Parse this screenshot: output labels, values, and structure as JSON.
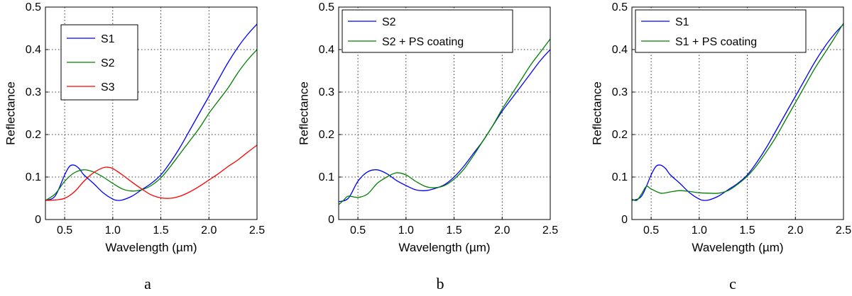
{
  "chart_data": [
    {
      "type": "line",
      "panel_label": "a",
      "xlabel": "Wavelength (µm)",
      "ylabel": "Reflectance",
      "xlim": [
        0.3,
        2.5
      ],
      "ylim": [
        0,
        0.5
      ],
      "xticks": [
        "0.5",
        "1.0",
        "1.5",
        "2.0",
        "2.5"
      ],
      "yticks": [
        "0",
        "0.1",
        "0.2",
        "0.3",
        "0.4",
        "0.5"
      ],
      "grid": true,
      "legend_position": "top-left",
      "series": [
        {
          "name": "S1",
          "color": "#0000ff",
          "x": [
            0.3,
            0.4,
            0.5,
            0.55,
            0.6,
            0.65,
            0.7,
            0.8,
            0.9,
            1.0,
            1.05,
            1.1,
            1.2,
            1.3,
            1.4,
            1.5,
            1.6,
            1.7,
            1.8,
            1.9,
            2.0,
            2.1,
            2.2,
            2.3,
            2.4,
            2.5
          ],
          "y": [
            0.045,
            0.055,
            0.105,
            0.125,
            0.128,
            0.12,
            0.105,
            0.085,
            0.063,
            0.048,
            0.045,
            0.046,
            0.055,
            0.07,
            0.085,
            0.105,
            0.135,
            0.17,
            0.21,
            0.25,
            0.29,
            0.33,
            0.37,
            0.405,
            0.435,
            0.46
          ]
        },
        {
          "name": "S2",
          "color": "#008000",
          "x": [
            0.3,
            0.4,
            0.5,
            0.6,
            0.7,
            0.8,
            0.9,
            1.0,
            1.1,
            1.2,
            1.3,
            1.4,
            1.5,
            1.6,
            1.7,
            1.8,
            1.9,
            2.0,
            2.1,
            2.2,
            2.3,
            2.4,
            2.5
          ],
          "y": [
            0.045,
            0.06,
            0.09,
            0.11,
            0.117,
            0.112,
            0.1,
            0.085,
            0.072,
            0.067,
            0.07,
            0.08,
            0.098,
            0.125,
            0.155,
            0.185,
            0.215,
            0.25,
            0.28,
            0.31,
            0.345,
            0.375,
            0.4
          ]
        },
        {
          "name": "S3",
          "color": "#ff0000",
          "x": [
            0.3,
            0.4,
            0.5,
            0.6,
            0.7,
            0.8,
            0.9,
            0.95,
            1.0,
            1.1,
            1.2,
            1.3,
            1.4,
            1.5,
            1.6,
            1.7,
            1.8,
            1.9,
            2.0,
            2.1,
            2.2,
            2.3,
            2.4,
            2.5
          ],
          "y": [
            0.045,
            0.046,
            0.05,
            0.065,
            0.09,
            0.11,
            0.122,
            0.123,
            0.12,
            0.105,
            0.088,
            0.072,
            0.058,
            0.051,
            0.05,
            0.055,
            0.065,
            0.078,
            0.093,
            0.108,
            0.125,
            0.14,
            0.158,
            0.175
          ]
        }
      ]
    },
    {
      "type": "line",
      "panel_label": "b",
      "xlabel": "Wavelength (µm)",
      "ylabel": "Reflectance",
      "xlim": [
        0.3,
        2.5
      ],
      "ylim": [
        0,
        0.5
      ],
      "xticks": [
        "0.5",
        "1.0",
        "1.5",
        "2.0",
        "2.5"
      ],
      "yticks": [
        "0",
        "0.1",
        "0.2",
        "0.3",
        "0.4",
        "0.5"
      ],
      "grid": true,
      "legend_position": "top-left",
      "series": [
        {
          "name": "S2",
          "color": "#0000ff",
          "x": [
            0.3,
            0.4,
            0.5,
            0.6,
            0.7,
            0.8,
            0.9,
            1.0,
            1.1,
            1.2,
            1.3,
            1.4,
            1.5,
            1.6,
            1.7,
            1.8,
            1.9,
            2.0,
            2.1,
            2.2,
            2.3,
            2.4,
            2.5
          ],
          "y": [
            0.042,
            0.05,
            0.09,
            0.112,
            0.117,
            0.108,
            0.092,
            0.08,
            0.07,
            0.068,
            0.073,
            0.082,
            0.1,
            0.125,
            0.155,
            0.185,
            0.22,
            0.255,
            0.285,
            0.315,
            0.345,
            0.375,
            0.4
          ]
        },
        {
          "name": "S2 + PS coating",
          "color": "#008000",
          "x": [
            0.3,
            0.35,
            0.4,
            0.5,
            0.6,
            0.7,
            0.8,
            0.9,
            1.0,
            1.1,
            1.2,
            1.3,
            1.4,
            1.5,
            1.6,
            1.7,
            1.8,
            1.9,
            2.0,
            2.1,
            2.2,
            2.3,
            2.4,
            2.5
          ],
          "y": [
            0.035,
            0.045,
            0.055,
            0.052,
            0.06,
            0.085,
            0.1,
            0.11,
            0.105,
            0.09,
            0.078,
            0.075,
            0.08,
            0.095,
            0.118,
            0.15,
            0.185,
            0.22,
            0.26,
            0.295,
            0.33,
            0.365,
            0.395,
            0.425
          ]
        }
      ]
    },
    {
      "type": "line",
      "panel_label": "c",
      "xlabel": "Wavelength (µm)",
      "ylabel": "Reflectance",
      "xlim": [
        0.3,
        2.5
      ],
      "ylim": [
        0,
        0.5
      ],
      "xticks": [
        "0.5",
        "1.0",
        "1.5",
        "2.0",
        "2.5"
      ],
      "yticks": [
        "0",
        "0.1",
        "0.2",
        "0.3",
        "0.4",
        "0.5"
      ],
      "grid": true,
      "legend_position": "top-left",
      "series": [
        {
          "name": "S1",
          "color": "#0000ff",
          "x": [
            0.3,
            0.4,
            0.5,
            0.55,
            0.6,
            0.65,
            0.7,
            0.8,
            0.9,
            1.0,
            1.05,
            1.1,
            1.2,
            1.3,
            1.4,
            1.5,
            1.6,
            1.7,
            1.8,
            1.9,
            2.0,
            2.1,
            2.2,
            2.3,
            2.4,
            2.5
          ],
          "y": [
            0.045,
            0.055,
            0.105,
            0.125,
            0.128,
            0.12,
            0.105,
            0.085,
            0.063,
            0.048,
            0.045,
            0.046,
            0.055,
            0.07,
            0.085,
            0.105,
            0.135,
            0.17,
            0.21,
            0.25,
            0.29,
            0.33,
            0.37,
            0.405,
            0.435,
            0.46
          ]
        },
        {
          "name": "S1 + PS coating",
          "color": "#008000",
          "x": [
            0.3,
            0.35,
            0.4,
            0.45,
            0.5,
            0.6,
            0.7,
            0.8,
            0.9,
            1.0,
            1.1,
            1.2,
            1.3,
            1.4,
            1.5,
            1.6,
            1.7,
            1.8,
            1.9,
            2.0,
            2.1,
            2.2,
            2.3,
            2.4,
            2.5
          ],
          "y": [
            0.048,
            0.045,
            0.06,
            0.078,
            0.072,
            0.062,
            0.065,
            0.068,
            0.066,
            0.063,
            0.062,
            0.062,
            0.068,
            0.083,
            0.102,
            0.128,
            0.16,
            0.195,
            0.235,
            0.275,
            0.315,
            0.355,
            0.39,
            0.425,
            0.462
          ]
        }
      ]
    }
  ]
}
